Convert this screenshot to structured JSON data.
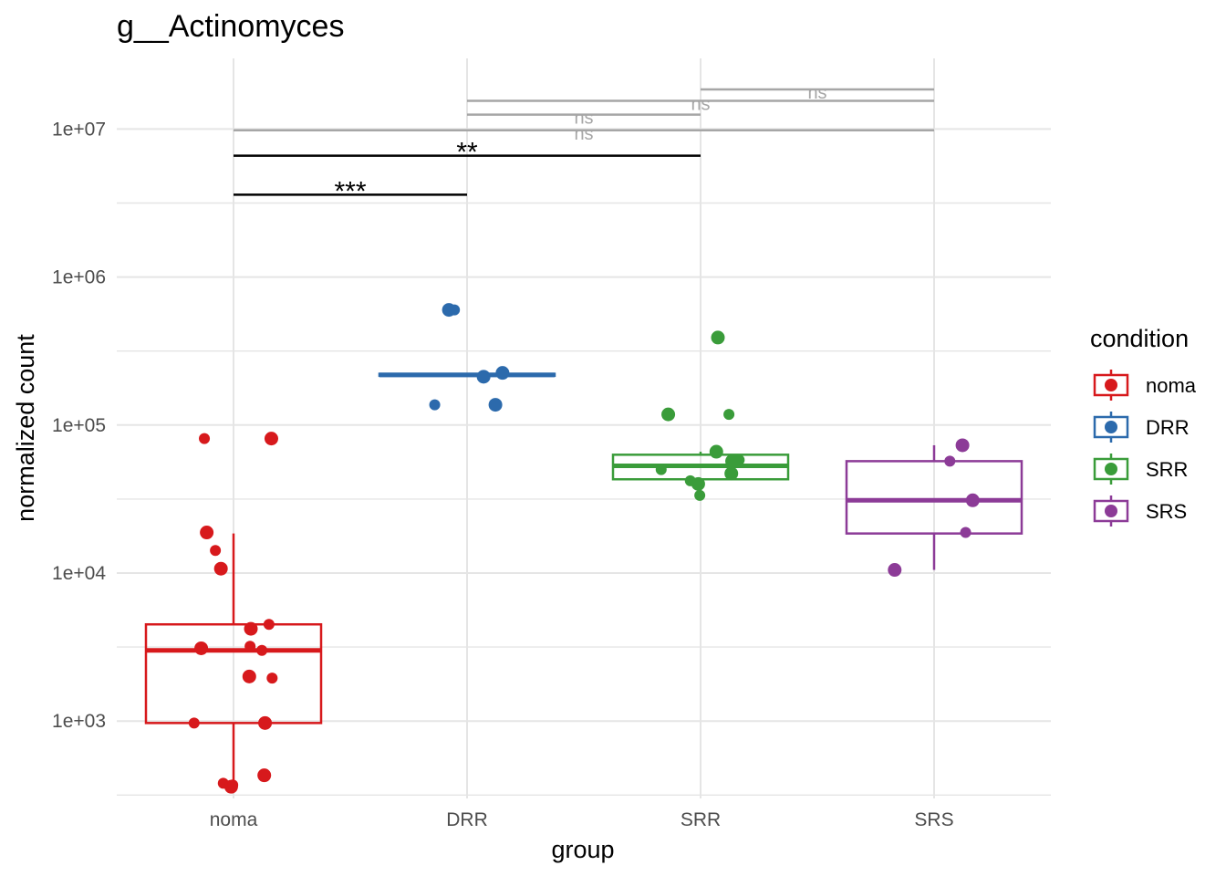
{
  "chart_data": {
    "type": "box",
    "title": "g__Actinomyces",
    "xlabel": "group",
    "ylabel": "normalized count",
    "y_scale": "log10",
    "ylim": [
      300,
      30000000
    ],
    "yticks": [
      1000,
      10000,
      100000,
      1000000,
      10000000
    ],
    "ytick_labels": [
      "1e+03",
      "1e+04",
      "1e+05",
      "1e+06",
      "1e+07"
    ],
    "grid": true,
    "categories": [
      "noma",
      "DRR",
      "SRR",
      "SRS"
    ],
    "legend": {
      "title": "condition",
      "position": "right",
      "entries": [
        "noma",
        "DRR",
        "SRR",
        "SRS"
      ]
    },
    "colors": {
      "noma": "#d7191c",
      "DRR": "#2c6aac",
      "SRR": "#3a9c3a",
      "SRS": "#8c3b97",
      "sig_black": "#000000",
      "sig_grey": "#a6a6a6",
      "grid": "#e5e5e5"
    },
    "boxes": [
      {
        "group": "noma",
        "whisker_low": 360,
        "q1": 970,
        "median": 3000,
        "q3": 4500,
        "whisker_high": 18500
      },
      {
        "group": "DRR",
        "whisker_low": 215000,
        "q1": 215000,
        "median": 218000,
        "q3": 222000,
        "whisker_high": 222000
      },
      {
        "group": "SRR",
        "whisker_low": 33000,
        "q1": 43000,
        "median": 53000,
        "q3": 63000,
        "whisker_high": 66000
      },
      {
        "group": "SRS",
        "whisker_low": 10500,
        "q1": 18500,
        "median": 31000,
        "q3": 57000,
        "whisker_high": 73000
      }
    ],
    "points": [
      {
        "group": "noma",
        "values": [
          81000,
          81000,
          18800,
          14200,
          10700,
          4500,
          4200,
          3200,
          3100,
          3000,
          2000,
          1950,
          970,
          970,
          430,
          380,
          360,
          370
        ]
      },
      {
        "group": "DRR",
        "values": [
          600000,
          600000,
          225000,
          215000,
          212000,
          137000,
          137000
        ]
      },
      {
        "group": "SRR",
        "values": [
          390000,
          390000,
          118000,
          118000,
          66000,
          58000,
          57000,
          50000,
          47000,
          42000,
          40000,
          33500
        ]
      },
      {
        "group": "SRS",
        "values": [
          73000,
          57000,
          31000,
          18800,
          10500
        ]
      }
    ],
    "comparisons": [
      {
        "group1": "noma",
        "group2": "DRR",
        "y": 3600000,
        "label": "***",
        "style": "black"
      },
      {
        "group1": "noma",
        "group2": "SRR",
        "y": 6600000,
        "label": "**",
        "style": "black"
      },
      {
        "group1": "noma",
        "group2": "SRS",
        "y": 9800000,
        "label": "ns",
        "style": "grey"
      },
      {
        "group1": "DRR",
        "group2": "SRR",
        "y": 12500000,
        "label": "ns",
        "style": "grey"
      },
      {
        "group1": "DRR",
        "group2": "SRS",
        "y": 15500000,
        "label": "ns",
        "style": "grey"
      },
      {
        "group1": "SRR",
        "group2": "SRS",
        "y": 18500000,
        "label": "ns",
        "style": "grey"
      }
    ]
  }
}
